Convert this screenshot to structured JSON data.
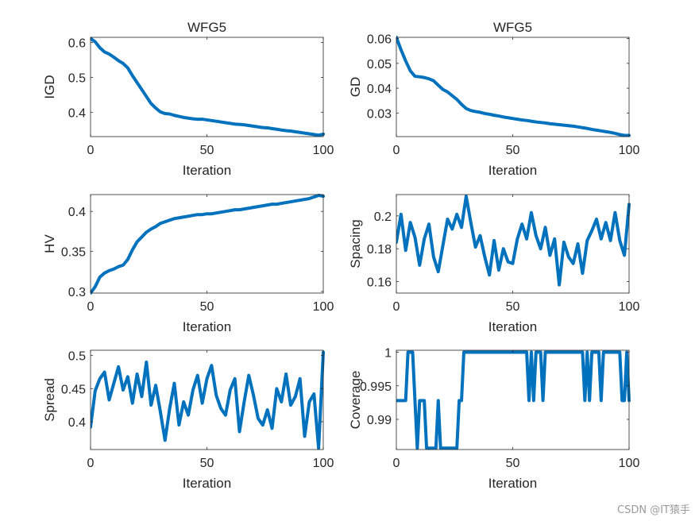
{
  "watermark": "CSDN @IT猿手",
  "colors": {
    "line": "#0072BD",
    "axis": "#262626",
    "background": "#ffffff"
  },
  "chart_data": [
    {
      "type": "line",
      "title": "WFG5",
      "xlabel": "Iteration",
      "ylabel": "IGD",
      "xlim": [
        0,
        100
      ],
      "ylim": [
        0.33,
        0.615
      ],
      "xticks": [
        0,
        50,
        100
      ],
      "xtick_labels": [
        "0",
        "50",
        "100"
      ],
      "yticks": [
        0.4,
        0.5,
        0.6
      ],
      "ytick_labels": [
        "0.4",
        "0.5",
        "0.6"
      ],
      "series": [
        {
          "name": "IGD",
          "x": [
            0,
            2,
            4,
            6,
            8,
            10,
            12,
            14,
            16,
            18,
            20,
            22,
            24,
            26,
            28,
            30,
            32,
            34,
            36,
            38,
            40,
            42,
            44,
            46,
            48,
            50,
            52,
            54,
            56,
            58,
            60,
            62,
            64,
            66,
            68,
            70,
            72,
            74,
            76,
            78,
            80,
            82,
            84,
            86,
            88,
            90,
            92,
            94,
            96,
            98,
            100
          ],
          "values": [
            0.612,
            0.602,
            0.585,
            0.573,
            0.567,
            0.558,
            0.548,
            0.54,
            0.527,
            0.505,
            0.485,
            0.465,
            0.445,
            0.425,
            0.412,
            0.401,
            0.396,
            0.395,
            0.391,
            0.388,
            0.385,
            0.383,
            0.381,
            0.38,
            0.38,
            0.378,
            0.376,
            0.374,
            0.372,
            0.37,
            0.368,
            0.366,
            0.365,
            0.364,
            0.362,
            0.36,
            0.358,
            0.356,
            0.355,
            0.353,
            0.351,
            0.349,
            0.347,
            0.346,
            0.344,
            0.342,
            0.34,
            0.338,
            0.336,
            0.334,
            0.337
          ]
        }
      ]
    },
    {
      "type": "line",
      "title": "WFG5",
      "xlabel": "Iteration",
      "ylabel": "GD",
      "xlim": [
        0,
        100
      ],
      "ylim": [
        0.0205,
        0.0605
      ],
      "xticks": [
        0,
        50,
        100
      ],
      "xtick_labels": [
        "0",
        "50",
        "100"
      ],
      "yticks": [
        0.03,
        0.04,
        0.05,
        0.06
      ],
      "ytick_labels": [
        "0.03",
        "0.04",
        "0.05",
        "0.06"
      ],
      "series": [
        {
          "name": "GD",
          "x": [
            0,
            2,
            4,
            6,
            8,
            10,
            12,
            14,
            16,
            18,
            20,
            22,
            24,
            26,
            28,
            30,
            32,
            34,
            36,
            38,
            40,
            42,
            44,
            46,
            48,
            50,
            52,
            54,
            56,
            58,
            60,
            62,
            64,
            66,
            68,
            70,
            72,
            74,
            76,
            78,
            80,
            82,
            84,
            86,
            88,
            90,
            92,
            94,
            96,
            98,
            100
          ],
          "values": [
            0.0605,
            0.0555,
            0.051,
            0.047,
            0.0448,
            0.0446,
            0.0443,
            0.0438,
            0.043,
            0.0412,
            0.0395,
            0.0385,
            0.037,
            0.0355,
            0.0335,
            0.0318,
            0.031,
            0.0306,
            0.0303,
            0.0298,
            0.0295,
            0.0291,
            0.0288,
            0.0284,
            0.0281,
            0.0278,
            0.0275,
            0.0272,
            0.027,
            0.0267,
            0.0264,
            0.0262,
            0.026,
            0.0257,
            0.0255,
            0.0253,
            0.0251,
            0.0249,
            0.0247,
            0.0244,
            0.0241,
            0.0238,
            0.0234,
            0.0231,
            0.0228,
            0.0225,
            0.0222,
            0.0218,
            0.0213,
            0.021,
            0.021
          ]
        }
      ]
    },
    {
      "type": "line",
      "title": "",
      "xlabel": "Iteration",
      "ylabel": "HV",
      "xlim": [
        0,
        100
      ],
      "ylim": [
        0.298,
        0.421
      ],
      "xticks": [
        0,
        50,
        100
      ],
      "xtick_labels": [
        "0",
        "50",
        "100"
      ],
      "yticks": [
        0.3,
        0.35,
        0.4
      ],
      "ytick_labels": [
        "0.3",
        "0.35",
        "0.4"
      ],
      "series": [
        {
          "name": "HV",
          "x": [
            0,
            2,
            4,
            6,
            8,
            10,
            12,
            14,
            16,
            18,
            20,
            22,
            24,
            26,
            28,
            30,
            32,
            34,
            36,
            38,
            40,
            42,
            44,
            46,
            48,
            50,
            52,
            54,
            56,
            58,
            60,
            62,
            64,
            66,
            68,
            70,
            72,
            74,
            76,
            78,
            80,
            82,
            84,
            86,
            88,
            90,
            92,
            94,
            96,
            98,
            100
          ],
          "values": [
            0.298,
            0.306,
            0.318,
            0.323,
            0.326,
            0.328,
            0.331,
            0.333,
            0.34,
            0.352,
            0.362,
            0.368,
            0.374,
            0.378,
            0.381,
            0.385,
            0.387,
            0.389,
            0.391,
            0.392,
            0.393,
            0.394,
            0.395,
            0.396,
            0.396,
            0.397,
            0.397,
            0.398,
            0.399,
            0.4,
            0.401,
            0.402,
            0.402,
            0.403,
            0.404,
            0.405,
            0.406,
            0.407,
            0.408,
            0.409,
            0.409,
            0.41,
            0.411,
            0.412,
            0.413,
            0.414,
            0.415,
            0.416,
            0.418,
            0.42,
            0.419
          ]
        }
      ]
    },
    {
      "type": "line",
      "title": "",
      "xlabel": "Iteration",
      "ylabel": "Spacing",
      "xlim": [
        0,
        100
      ],
      "ylim": [
        0.153,
        0.213
      ],
      "xticks": [
        0,
        50,
        100
      ],
      "xtick_labels": [
        "0",
        "50",
        "100"
      ],
      "yticks": [
        0.16,
        0.18,
        0.2
      ],
      "ytick_labels": [
        "0.16",
        "0.18",
        "0.2"
      ],
      "series": [
        {
          "name": "Spacing",
          "x": [
            0,
            2,
            4,
            6,
            8,
            10,
            12,
            14,
            16,
            18,
            20,
            22,
            24,
            26,
            28,
            30,
            32,
            34,
            36,
            38,
            40,
            42,
            44,
            46,
            48,
            50,
            52,
            54,
            56,
            58,
            60,
            62,
            64,
            66,
            68,
            70,
            72,
            74,
            76,
            78,
            80,
            82,
            84,
            86,
            88,
            90,
            92,
            94,
            96,
            98,
            100
          ],
          "values": [
            0.184,
            0.201,
            0.179,
            0.196,
            0.187,
            0.17,
            0.186,
            0.195,
            0.175,
            0.166,
            0.182,
            0.198,
            0.192,
            0.201,
            0.193,
            0.212,
            0.196,
            0.181,
            0.188,
            0.175,
            0.164,
            0.185,
            0.167,
            0.18,
            0.172,
            0.171,
            0.186,
            0.195,
            0.186,
            0.202,
            0.188,
            0.18,
            0.193,
            0.176,
            0.186,
            0.158,
            0.184,
            0.175,
            0.171,
            0.183,
            0.165,
            0.185,
            0.191,
            0.198,
            0.186,
            0.196,
            0.185,
            0.202,
            0.185,
            0.176,
            0.207
          ]
        }
      ]
    },
    {
      "type": "line",
      "title": "",
      "xlabel": "Iteration",
      "ylabel": "Spread",
      "xlim": [
        0,
        100
      ],
      "ylim": [
        0.358,
        0.508
      ],
      "xticks": [
        0,
        50,
        100
      ],
      "xtick_labels": [
        "0",
        "50",
        "100"
      ],
      "yticks": [
        0.4,
        0.45,
        0.5
      ],
      "ytick_labels": [
        "0.4",
        "0.45",
        "0.5"
      ],
      "series": [
        {
          "name": "Spread",
          "x": [
            0,
            2,
            4,
            6,
            8,
            10,
            12,
            14,
            16,
            18,
            20,
            22,
            24,
            26,
            28,
            30,
            32,
            34,
            36,
            38,
            40,
            42,
            44,
            46,
            48,
            50,
            52,
            54,
            56,
            58,
            60,
            62,
            64,
            66,
            68,
            70,
            72,
            74,
            76,
            78,
            80,
            82,
            84,
            86,
            88,
            90,
            92,
            94,
            96,
            98,
            100
          ],
          "values": [
            0.392,
            0.447,
            0.465,
            0.475,
            0.433,
            0.458,
            0.483,
            0.448,
            0.468,
            0.428,
            0.472,
            0.438,
            0.49,
            0.425,
            0.455,
            0.415,
            0.372,
            0.42,
            0.458,
            0.395,
            0.43,
            0.41,
            0.448,
            0.47,
            0.428,
            0.465,
            0.485,
            0.44,
            0.42,
            0.41,
            0.448,
            0.465,
            0.385,
            0.43,
            0.47,
            0.44,
            0.405,
            0.395,
            0.418,
            0.39,
            0.45,
            0.43,
            0.472,
            0.425,
            0.438,
            0.465,
            0.378,
            0.43,
            0.442,
            0.36,
            0.505
          ]
        }
      ]
    },
    {
      "type": "line",
      "title": "",
      "xlabel": "Iteration",
      "ylabel": "Coverage",
      "xlim": [
        0,
        100
      ],
      "ylim": [
        0.9855,
        1.0003
      ],
      "xticks": [
        0,
        50,
        100
      ],
      "xtick_labels": [
        "0",
        "50",
        "100"
      ],
      "yticks": [
        0.99,
        0.995,
        1
      ],
      "ytick_labels": [
        "0.99",
        "0.995",
        "1"
      ],
      "series": [
        {
          "name": "Coverage",
          "x": [
            0,
            1,
            2,
            3,
            4,
            5,
            6,
            7,
            8,
            9,
            10,
            11,
            12,
            13,
            14,
            15,
            16,
            17,
            18,
            19,
            20,
            21,
            22,
            23,
            24,
            25,
            26,
            27,
            28,
            29,
            30,
            35,
            40,
            45,
            50,
            55,
            56,
            57,
            58,
            59,
            60,
            61,
            62,
            63,
            64,
            65,
            66,
            70,
            75,
            80,
            81,
            82,
            83,
            84,
            85,
            86,
            87,
            88,
            89,
            90,
            95,
            96,
            97,
            98,
            99,
            100
          ],
          "values": [
            0.9928,
            0.9928,
            0.9928,
            0.9928,
            0.9928,
            1.0,
            1.0,
            1.0,
            0.9928,
            0.9857,
            0.9928,
            0.9928,
            0.9928,
            0.9857,
            0.9857,
            0.9857,
            0.9857,
            0.9857,
            0.9928,
            0.9857,
            0.9857,
            0.9857,
            0.9857,
            0.9857,
            0.9857,
            0.9857,
            0.9857,
            0.9928,
            0.9928,
            1.0,
            1.0,
            1.0,
            1.0,
            1.0,
            1.0,
            1.0,
            1.0,
            0.9928,
            1.0,
            0.9928,
            1.0,
            1.0,
            1.0,
            0.9928,
            1.0,
            1.0,
            1.0,
            1.0,
            1.0,
            1.0,
            0.9928,
            1.0,
            0.9928,
            1.0,
            1.0,
            1.0,
            1.0,
            0.9928,
            1.0,
            1.0,
            1.0,
            1.0,
            0.9928,
            0.9928,
            1.0,
            0.9928
          ]
        }
      ]
    }
  ]
}
